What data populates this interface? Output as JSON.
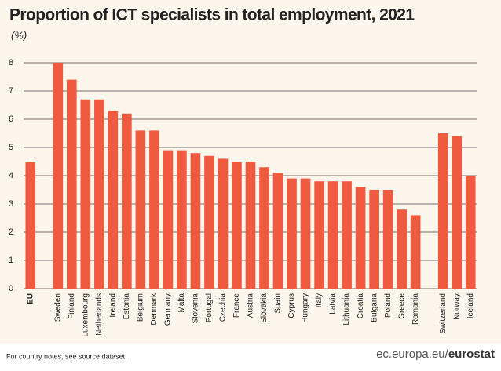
{
  "chart_data": {
    "type": "bar",
    "title": "Proportion of ICT specialists in total employment, 2021",
    "subtitle": "(%)",
    "categories": [
      "EU",
      null,
      "Sweden",
      "Finland",
      "Luxembourg",
      "Netherlands",
      "Ireland",
      "Estonia",
      "Belgium",
      "Denmark",
      "Germany",
      "Malta",
      "Slovenia",
      "Portugal",
      "Czechia",
      "France",
      "Austria",
      "Slovakia",
      "Spain",
      "Cyprus",
      "Hungary",
      "Italy",
      "Latvia",
      "Lithuania",
      "Croatia",
      "Bulgaria",
      "Poland",
      "Greece",
      "Romania",
      null,
      "Switzerland",
      "Norway",
      "Iceland"
    ],
    "values": [
      4.5,
      null,
      8.0,
      7.4,
      6.7,
      6.7,
      6.3,
      6.2,
      5.6,
      5.6,
      4.9,
      4.9,
      4.8,
      4.7,
      4.6,
      4.5,
      4.5,
      4.3,
      4.1,
      3.9,
      3.9,
      3.8,
      3.8,
      3.8,
      3.6,
      3.5,
      3.5,
      2.8,
      2.6,
      null,
      5.5,
      5.4,
      4.0
    ],
    "color": "#f05a3f",
    "ylim": [
      0,
      8
    ],
    "yticks": [
      0,
      1,
      2,
      3,
      4,
      5,
      6,
      7,
      8
    ],
    "grid": true,
    "note": "For country notes, see source dataset.",
    "source": [
      "ec.europa.eu/",
      "eurostat"
    ]
  }
}
